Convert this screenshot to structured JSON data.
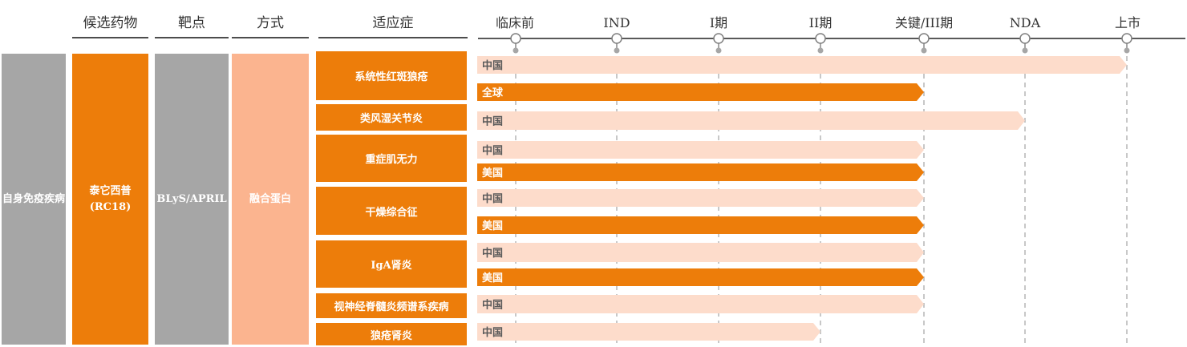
{
  "headers": {
    "candidate": "候选药物",
    "target": "靶点",
    "modality": "方式",
    "indication": "适应症"
  },
  "phases": [
    "临床前",
    "IND",
    "I期",
    "II期",
    "关键/III期",
    "NDA",
    "上市"
  ],
  "columns": {
    "area": "自身免疫疾病",
    "drug_name": "泰它西普",
    "drug_code": "(RC18)",
    "target": "BLyS/APRIL",
    "modality": "融合蛋白"
  },
  "indications": [
    "系统性红斑狼疮",
    "类风湿关节炎",
    "重症肌无力",
    "干燥综合征",
    "IgA肾炎",
    "视神经脊髓炎频谱系疾病",
    "狼疮肾炎"
  ],
  "bars": [
    {
      "label": "中国",
      "reach": "上市",
      "style": "light"
    },
    {
      "label": "全球",
      "reach": "关键/III期",
      "style": "dark"
    },
    {
      "label": "中国",
      "reach": "NDA",
      "style": "light"
    },
    {
      "label": "中国",
      "reach": "关键/III期",
      "style": "light"
    },
    {
      "label": "美国",
      "reach": "关键/III期",
      "style": "dark"
    },
    {
      "label": "中国",
      "reach": "关键/III期",
      "style": "light"
    },
    {
      "label": "美国",
      "reach": "关键/III期",
      "style": "dark"
    },
    {
      "label": "中国",
      "reach": "关键/III期",
      "style": "light"
    },
    {
      "label": "美国",
      "reach": "关键/III期",
      "style": "dark"
    },
    {
      "label": "中国",
      "reach": "关键/III期",
      "style": "light"
    },
    {
      "label": "中国",
      "reach": "II期",
      "style": "light"
    }
  ],
  "colors": {
    "orange": "#ed7d0a",
    "light_orange": "#fddccb",
    "salmon": "#fbb48f",
    "gray": "#a6a6a6",
    "axis": "#595959"
  }
}
